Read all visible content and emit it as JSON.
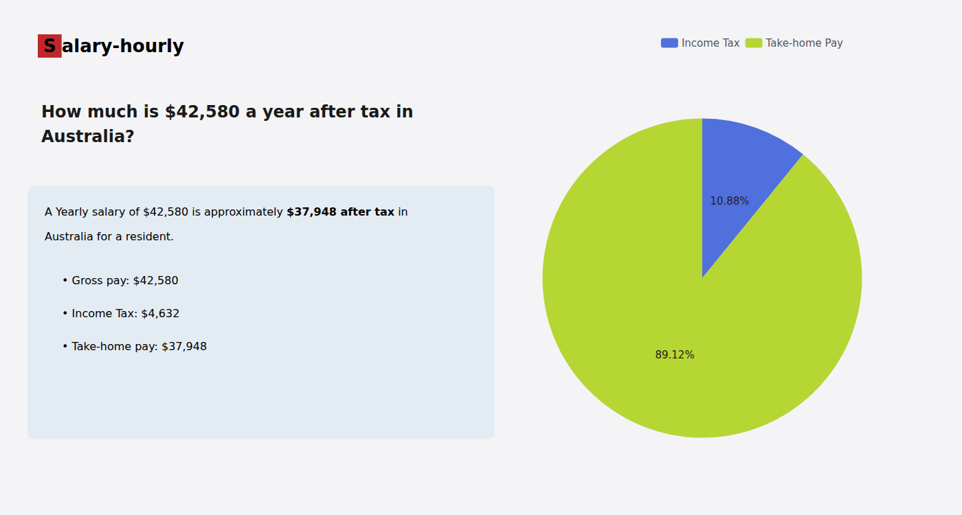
{
  "chart_data": {
    "type": "pie",
    "title": "How much is $42,580 a year after tax in\nAustralia?",
    "annotations": [
      [
        {
          "text": "S",
          "color": "#c0272d"
        },
        {
          "text": "alary-hourly"
        }
      ],
      [
        {
          "text": "A Yearly salary of $42,580 is approximately "
        },
        {
          "text": "$37,948 after tax",
          "color": "#cc0000"
        },
        {
          "text": " in"
        }
      ],
      [
        {
          "text": "Australia for a resident."
        }
      ],
      [
        {
          "text": "• Gross pay: $42,580"
        }
      ],
      [
        {
          "text": "• Income Tax: $4,632"
        }
      ],
      [
        {
          "text": "• Take-home pay: $37,948"
        }
      ]
    ],
    "categories": [
      "Income Tax",
      "Take-home Pay"
    ],
    "values": [
      10.88,
      89.12
    ],
    "value_labels": [
      "10.88%",
      "89.12%"
    ],
    "data_labels": true,
    "legend": "top"
  }
}
